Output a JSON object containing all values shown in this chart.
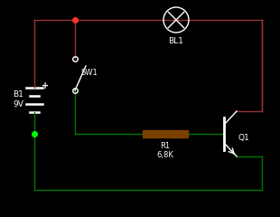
{
  "bg_color": "#000000",
  "wire_color_red": "#993333",
  "wire_color_green": "#007700",
  "wire_color_white": "#ffffff",
  "component_color": "#ffffff",
  "resistor_color": "#7a4000",
  "dot_color_red": "#ff3333",
  "dot_color_green": "#00ff00",
  "label_B1": "B1\n9V",
  "label_SW1": "SW1",
  "label_BL1": "BL1",
  "label_R1": "R1\n6,8K",
  "label_Q1": "Q1",
  "lw": 1.0
}
